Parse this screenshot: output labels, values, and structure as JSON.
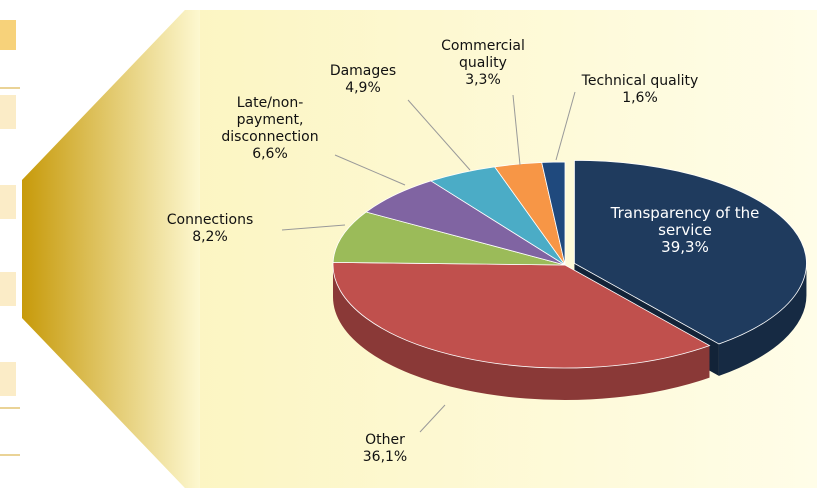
{
  "chart_data": {
    "type": "pie",
    "categories": [
      "Transparency of the service",
      "Other",
      "Connections",
      "Late/non-payment, disconnection",
      "Damages",
      "Commercial quality",
      "Technical quality"
    ],
    "values": [
      39.3,
      36.1,
      8.2,
      6.6,
      4.9,
      3.3,
      1.6
    ],
    "value_labels": [
      "39,3%",
      "36,1%",
      "8,2%",
      "6,6%",
      "4,9%",
      "3,3%",
      "1,6%"
    ],
    "colors": [
      "#1f3b5e",
      "#c0504d",
      "#9bbb59",
      "#8064a2",
      "#4bacc6",
      "#f79646",
      "#1f497d"
    ]
  }
}
